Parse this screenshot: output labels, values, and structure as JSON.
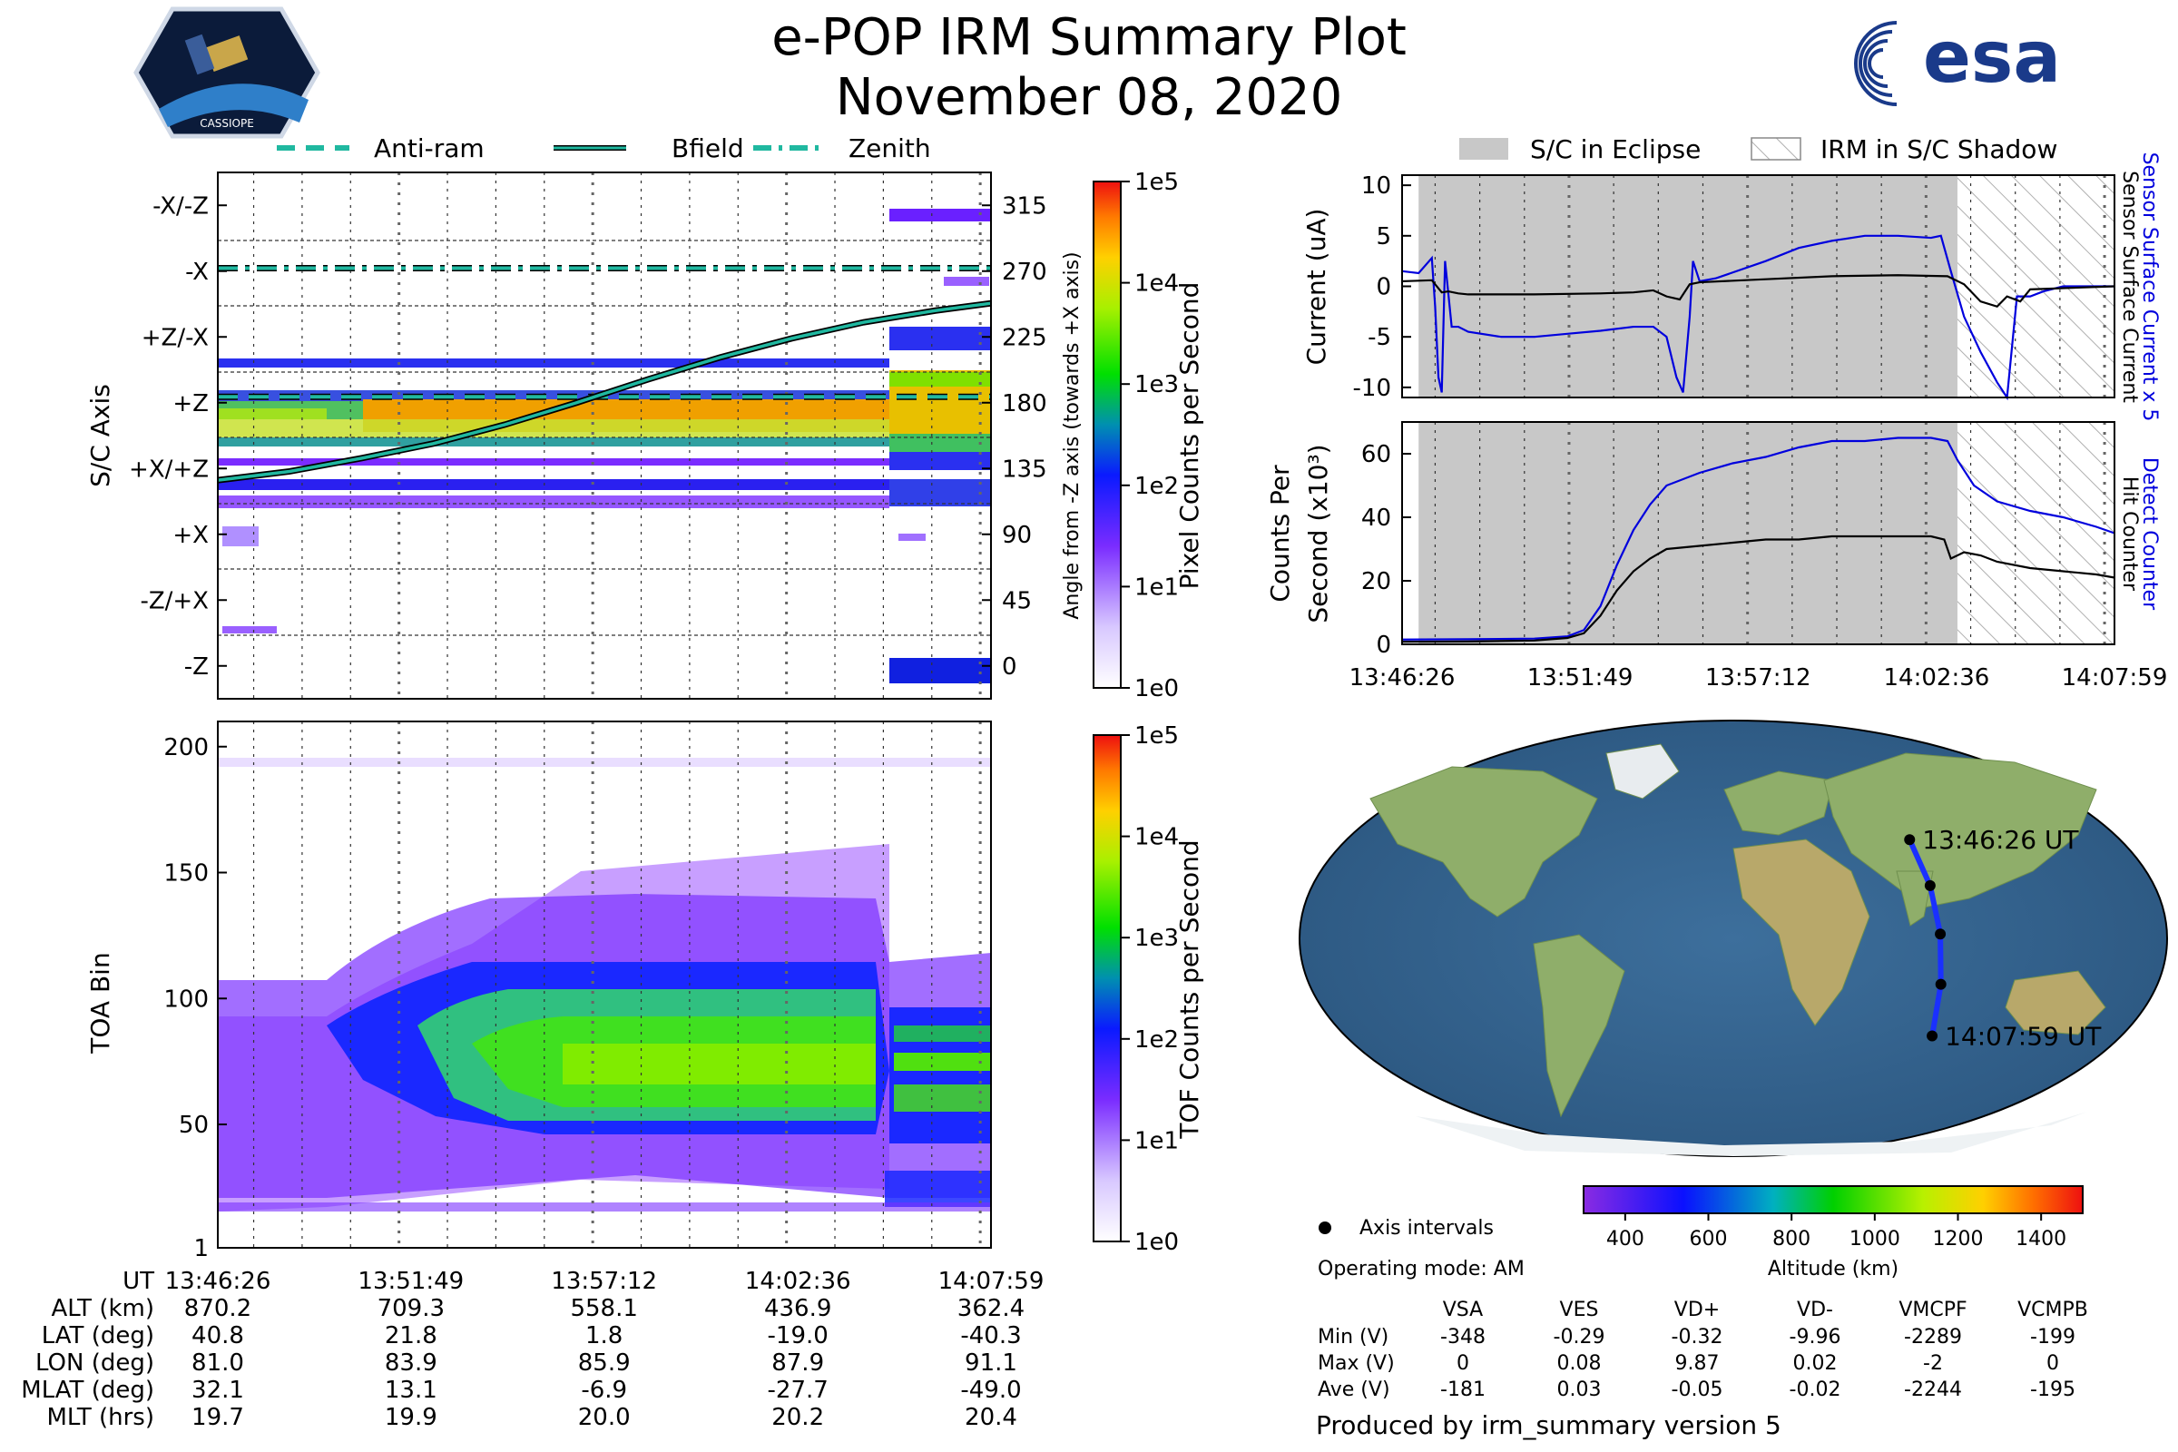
{
  "title": {
    "line1": "e-POP IRM Summary Plot",
    "line2": "November 08, 2020"
  },
  "logos": {
    "left": "CASSIOPE",
    "right": "esa"
  },
  "colors": {
    "eclipse": "#c8c8c8",
    "blue_trace": "#0000dd",
    "trace_black": "#000000",
    "teal": "#20b8a0"
  },
  "chart_data": [
    {
      "id": "sc_axis",
      "type": "heatmap",
      "ylabel": "S/C Axis",
      "y2label": "Angle from -Z axis (towards +X axis)",
      "axis_labels": [
        "-X/-Z",
        "-X",
        "+Z/-X",
        "+Z",
        "+X/+Z",
        "+X",
        "-Z/+X",
        "-Z"
      ],
      "angle_ticks": [
        315,
        270,
        225,
        180,
        135,
        90,
        45,
        0
      ],
      "ylim": [
        -22.5,
        337.5
      ],
      "colorbar": {
        "label": "Pixel Counts per Second",
        "ticks": [
          "1e0",
          "1e1",
          "1e2",
          "1e3",
          "1e4",
          "1e5"
        ]
      },
      "legend": [
        "Anti-ram",
        "Bfield",
        "Zenith"
      ],
      "lines": {
        "antiram": {
          "x": [
            0,
            21.55
          ],
          "y": [
            184,
            184
          ]
        },
        "zenith": {
          "x": [
            0,
            21.55
          ],
          "y": [
            272,
            272
          ]
        },
        "bfield": {
          "x": [
            0,
            2,
            4,
            6,
            8,
            10,
            12,
            14,
            16,
            18,
            20,
            21.55
          ],
          "y": [
            127,
            133,
            142,
            152,
            165,
            180,
            196,
            211,
            224,
            235,
            243,
            248
          ]
        }
      }
    },
    {
      "id": "toa",
      "type": "heatmap",
      "ylabel": "TOA Bin",
      "yticks": [
        1,
        50,
        100,
        150,
        200
      ],
      "ylim": [
        1,
        210
      ],
      "colorbar": {
        "label": "TOF Counts per Second",
        "ticks": [
          "1e0",
          "1e1",
          "1e2",
          "1e3",
          "1e4",
          "1e5"
        ]
      }
    },
    {
      "id": "current",
      "type": "line",
      "ylabel": "Current (uA)",
      "y2label_blue": "Sensor Surface Current x 5",
      "y2label_black": "Sensor Surface Current",
      "yticks": [
        10,
        5,
        0,
        -5,
        -10
      ],
      "ylim": [
        -11,
        11
      ],
      "legend": [
        "S/C in Eclipse",
        "IRM in S/C Shadow"
      ],
      "eclipse_range": [
        0.5,
        16.8
      ],
      "shadow_range": [
        16.8,
        21.55
      ],
      "series": [
        {
          "name": "Sensor Surface Current x 5",
          "color": "#0000dd",
          "x": [
            0,
            0.5,
            0.9,
            1.0,
            1.1,
            1.2,
            1.3,
            1.5,
            1.7,
            2.0,
            3.0,
            4.0,
            5.0,
            6.0,
            7.0,
            7.6,
            8.0,
            8.3,
            8.5,
            8.7,
            8.8,
            9.0,
            9.5,
            11,
            12,
            13,
            14,
            15,
            16,
            16.3,
            16.6,
            17.0,
            17.5,
            18.0,
            18.3,
            18.6,
            19.0,
            19.4,
            20.0,
            21.55
          ],
          "y": [
            1.5,
            1.3,
            2.8,
            -2.0,
            -9.0,
            -10.5,
            2.5,
            -4.0,
            -4.0,
            -4.5,
            -5.0,
            -5.0,
            -4.7,
            -4.4,
            -4.0,
            -4.0,
            -5.0,
            -9.0,
            -10.5,
            -3.0,
            2.5,
            0.5,
            0.8,
            2.5,
            3.8,
            4.5,
            5.0,
            5.0,
            4.8,
            5.0,
            1.5,
            -3.0,
            -6.5,
            -9.5,
            -11.0,
            -1.0,
            -1.0,
            -0.5,
            0.0,
            0.0
          ]
        },
        {
          "name": "Sensor Surface Current",
          "color": "#000000",
          "x": [
            0,
            0.9,
            1.2,
            1.4,
            1.7,
            2.0,
            4.0,
            6.0,
            7.0,
            7.6,
            8.0,
            8.4,
            8.7,
            9.0,
            11,
            13,
            15,
            16.5,
            17.0,
            17.5,
            18.0,
            18.3,
            18.7,
            19.0,
            21.55
          ],
          "y": [
            0.5,
            0.6,
            -0.6,
            -0.5,
            -0.7,
            -0.8,
            -0.8,
            -0.7,
            -0.6,
            -0.4,
            -1.0,
            -1.3,
            0.2,
            0.4,
            0.7,
            1.0,
            1.1,
            1.0,
            0.2,
            -1.5,
            -2.0,
            -1.0,
            -1.5,
            -0.3,
            0.0
          ]
        }
      ]
    },
    {
      "id": "counts",
      "type": "line",
      "ylabel": "Counts Per Second (x10³)",
      "y2label_blue": "Detect Counter",
      "y2label_black": "Hit Counter",
      "yticks": [
        0,
        20,
        40,
        60
      ],
      "ylim": [
        0,
        70
      ],
      "series": [
        {
          "name": "Detect Counter",
          "color": "#0000dd",
          "x": [
            0,
            2,
            4,
            5,
            5.5,
            6,
            6.5,
            7,
            7.5,
            8,
            9,
            10,
            11,
            12,
            13,
            14,
            15,
            16,
            16.5,
            16.8,
            17.3,
            18,
            19,
            20,
            21,
            21.55
          ],
          "y": [
            1.5,
            1.6,
            1.8,
            2.5,
            4.5,
            12,
            25,
            36,
            44,
            50,
            54,
            57,
            59,
            62,
            64,
            64,
            65,
            65,
            64,
            58,
            50,
            45,
            42,
            40,
            37,
            35
          ]
        },
        {
          "name": "Hit Counter",
          "color": "#000000",
          "x": [
            0,
            2,
            4,
            5,
            5.5,
            6,
            6.5,
            7,
            7.5,
            8,
            9,
            10,
            11,
            12,
            13,
            14,
            15,
            16,
            16.4,
            16.6,
            17.0,
            17.5,
            18,
            19,
            20,
            21,
            21.55
          ],
          "y": [
            0.8,
            0.9,
            1.2,
            2.0,
            3.5,
            9,
            17,
            23,
            27,
            30,
            31,
            32,
            33,
            33,
            34,
            34,
            34,
            34,
            33,
            27,
            29,
            28,
            26,
            24,
            23,
            22,
            21
          ]
        }
      ]
    }
  ],
  "time_axis": {
    "ticks": [
      "13:46:26",
      "13:51:49",
      "13:57:12",
      "14:02:36",
      "14:07:59"
    ],
    "tick_minutes": [
      0,
      5.383,
      10.767,
      16.167,
      21.55
    ]
  },
  "ephemeris": {
    "headers": [
      "UT",
      "ALT (km)",
      "LAT (deg)",
      "LON (deg)",
      "MLAT (deg)",
      "MLT (hrs)"
    ],
    "columns": [
      [
        "13:46:26",
        "870.2",
        "40.8",
        "81.0",
        "32.1",
        "19.7"
      ],
      [
        "13:51:49",
        "709.3",
        "21.8",
        "83.9",
        "13.1",
        "19.9"
      ],
      [
        "13:57:12",
        "558.1",
        "1.8",
        "85.9",
        "-6.9",
        "20.0"
      ],
      [
        "14:02:36",
        "436.9",
        "-19.0",
        "87.9",
        "-27.7",
        "20.2"
      ],
      [
        "14:07:59",
        "362.4",
        "-40.3",
        "91.1",
        "-49.0",
        "20.4"
      ]
    ]
  },
  "map": {
    "start_label": "13:46:26 UT",
    "end_label": "14:07:59 UT",
    "track": [
      {
        "lon": 81.0,
        "lat": 40.8
      },
      {
        "lon": 83.9,
        "lat": 21.8
      },
      {
        "lon": 85.9,
        "lat": 1.8
      },
      {
        "lon": 87.9,
        "lat": -19.0
      },
      {
        "lon": 91.1,
        "lat": -40.3
      }
    ],
    "altitude_colorbar": {
      "label": "Altitude (km)",
      "ticks": [
        400,
        600,
        800,
        1000,
        1200,
        1400
      ],
      "range": [
        300,
        1500
      ]
    },
    "legend": "Axis intervals"
  },
  "info": {
    "operating_mode": "Operating mode: AM",
    "table_headers": [
      "VSA",
      "VES",
      "VD+",
      "VD-",
      "VMCPF",
      "VCMPB"
    ],
    "rows": [
      {
        "label": "Min (V)",
        "values": [
          "-348",
          "-0.29",
          "-0.32",
          "-9.96",
          "-2289",
          "-199"
        ]
      },
      {
        "label": "Max (V)",
        "values": [
          "0",
          "0.08",
          "9.87",
          "0.02",
          "-2",
          "0"
        ]
      },
      {
        "label": "Ave (V)",
        "values": [
          "-181",
          "0.03",
          "-0.05",
          "-0.02",
          "-2244",
          "-195"
        ]
      }
    ],
    "produced_by": "Produced by irm_summary version 5"
  }
}
